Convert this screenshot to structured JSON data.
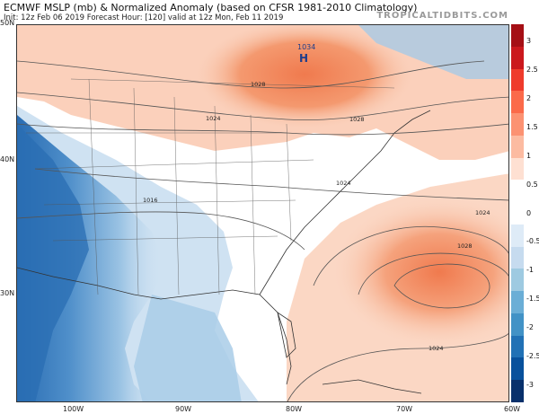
{
  "header": {
    "title": "ECMWF MSLP (mb) & Normalized Anomaly (based on CFSR 1981-2010 Climatology)",
    "subtitle": "Init: 12z Feb 06 2019   Forecast Hour: [120]   valid at 12z Mon, Feb 11 2019",
    "brand": "TROPICALTIDBITS.COM"
  },
  "map": {
    "lat_labels": [
      "50N",
      "40N",
      "30N"
    ],
    "lon_labels": [
      "100W",
      "90W",
      "80W",
      "70W",
      "60W"
    ],
    "high_center": {
      "symbol": "H",
      "value": "1034"
    },
    "isobar_labels": [
      "1028",
      "1024",
      "1028",
      "1024",
      "1016",
      "1024",
      "1028",
      "1024"
    ]
  },
  "colorbar": {
    "ticks": [
      "3",
      "2.5",
      "2",
      "1.5",
      "1",
      "0.5",
      "0",
      "-0.5",
      "-1",
      "-1.5",
      "-2",
      "-2.5",
      "-3"
    ],
    "colors": [
      "#a50f15",
      "#cb181d",
      "#ef3b2c",
      "#fb6a4a",
      "#fc9272",
      "#fcbba1",
      "#fee0d2",
      "#ffffff",
      "#ffffff",
      "#deebf7",
      "#c6dbef",
      "#9ecae1",
      "#6baed6",
      "#4292c6",
      "#2171b5",
      "#08519c",
      "#08306b"
    ]
  }
}
